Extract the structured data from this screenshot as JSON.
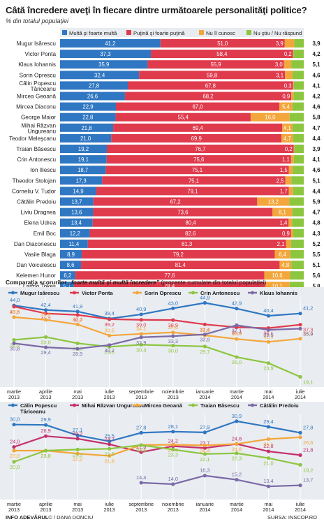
{
  "header": {
    "title": "Câtă încredere aveţi în fiecare dintre următoarele personalităţi politice?",
    "subtitle": "% din totalul populaţiei"
  },
  "colors": {
    "blue": "#2f77c2",
    "red": "#e03a4d",
    "orange": "#f3a63b",
    "green": "#8cc63f",
    "purple": "#7b6aa6",
    "magenta": "#c4306b",
    "trend_blue": "#2f77c2",
    "trend_red": "#d8304b"
  },
  "footer": {
    "left": "INFO ADEVĂRUL",
    "left_rest": "© / DANA DONCIU",
    "right": "SURSA: INSCOP.RO"
  },
  "chart_data": [
    {
      "type": "bar",
      "stacked": true,
      "legend": [
        "Multă şi foarte multă",
        "Puţină şi foarte puţină",
        "Nu îl cunosc",
        "Nu ştiu / Nu răspund"
      ],
      "categories": [
        "Mugur Isărescu",
        "Victor Ponta",
        "Klaus Iohannis",
        "Sorin Oprescu",
        "Călin Popescu Tăriceanu",
        "Mircea Geoană",
        "Mircea Diaconu",
        "George Maior",
        "Mihai Răzvan Ungureanu",
        "Teodor Meleşcanu",
        "Traian Băsescu",
        "Crin Antonescu",
        "Ion Iliescu",
        "Theodor Stolojan",
        "Corneliu V. Tudor",
        "Cătălin Predoiu",
        "Liviu Dragnea",
        "Elena Udrea",
        "Emil Boc",
        "Dan Diaconescu",
        "Vasile Blaga",
        "Dan Voiculescu",
        "Kelemen Hunor",
        "Laszlo Tokes"
      ],
      "series": [
        {
          "name": "Multă şi foarte multă",
          "values": [
            41.2,
            37.3,
            35.9,
            32.4,
            27.8,
            26.6,
            22.9,
            22.8,
            21.8,
            21.0,
            19.2,
            19.1,
            18.7,
            17.3,
            14.9,
            13.7,
            13.6,
            13.4,
            12.2,
            11.4,
            8.9,
            8.6,
            6.2,
            5.7
          ]
        },
        {
          "name": "Puţină şi foarte puţină",
          "values": [
            51.0,
            58.4,
            55.9,
            59.8,
            67.8,
            68.2,
            67.0,
            55.4,
            69.4,
            69.9,
            76.7,
            75.6,
            75.1,
            75.1,
            79.1,
            67.2,
            73.6,
            80.4,
            82.6,
            81.3,
            79.2,
            81.4,
            77.6,
            78.4
          ]
        },
        {
          "name": "Nu îl cunosc",
          "values": [
            3.9,
            0.2,
            3.0,
            3.1,
            0.3,
            0.9,
            5.4,
            16.0,
            4.1,
            4.7,
            0.2,
            1.1,
            1.5,
            2.5,
            1.7,
            13.2,
            8.1,
            1.4,
            0.9,
            2.1,
            6.4,
            4.8,
            10.6,
            10.1
          ]
        },
        {
          "name": "Nu ştiu / Nu răspund",
          "values": [
            3.9,
            4.2,
            5.1,
            4.6,
            4.1,
            4.2,
            4.6,
            5.8,
            4.7,
            4.4,
            3.9,
            4.1,
            4.6,
            5.1,
            4.4,
            5.9,
            4.7,
            4.8,
            4.3,
            5.2,
            5.5,
            5.1,
            5.6,
            5.8
          ]
        }
      ],
      "xlim": [
        0,
        100
      ]
    },
    {
      "type": "line",
      "title": "Comparaţia scorurilor",
      "title_italic": "„foarte multă şi multă încredere”",
      "title_rest": "(procente cumulate din totalul populaţiei)",
      "x": [
        [
          "martie",
          "2013"
        ],
        [
          "aprilie",
          "2013"
        ],
        [
          "mai",
          "2013"
        ],
        [
          "iulie",
          "2013"
        ],
        [
          "septembrie",
          "2013"
        ],
        [
          "noiembrie",
          "2013"
        ],
        [
          "ianuarie",
          "2014"
        ],
        [
          "martie",
          "2014"
        ],
        [
          "mai",
          "2014"
        ],
        [
          "iulie",
          "2014"
        ]
      ],
      "series": [
        {
          "name": "Mugur Isărescu",
          "values": [
            44.0,
            42.4,
            41.9,
            39.4,
            40.9,
            43.0,
            44.9,
            42.9,
            40.4,
            41.2
          ]
        },
        {
          "name": "Victor Ponta",
          "values": [
            43.6,
            41.2,
            40.7,
            39.2,
            39.0,
            38.9,
            37.4,
            36.4,
            36.1,
            37.3
          ]
        },
        {
          "name": "Sorin Oprescu",
          "values": [
            39.9,
            39.0,
            37.4,
            33.5,
            34.1,
            34.6,
            33.6,
            32.3,
            31.3,
            32.4
          ]
        },
        {
          "name": "Crin Antonescu",
          "values": [
            32.0,
            33.0,
            30.8,
            29.6,
            30.3,
            30.0,
            29.7,
            26.0,
            23.9,
            19.1
          ]
        },
        {
          "name": "Klaus Iohannis",
          "values": [
            30.8,
            29.4,
            28.9,
            30.2,
            32.9,
            33.3,
            33.9,
            37.1,
            35.5,
            35.9
          ]
        }
      ],
      "ylim": [
        17,
        46
      ]
    },
    {
      "type": "line",
      "x": [
        [
          "martie",
          "2013"
        ],
        [
          "aprilie",
          "2013"
        ],
        [
          "mai",
          "2013"
        ],
        [
          "iulie",
          "2013"
        ],
        [
          "septembrie",
          "2013"
        ],
        [
          "noiembrie",
          "2013"
        ],
        [
          "ianuarie",
          "2014"
        ],
        [
          "martie",
          "2014"
        ],
        [
          "mai",
          "2014"
        ],
        [
          "iulie",
          "2014"
        ]
      ],
      "series": [
        {
          "name": "Călin Popescu Tăriceanu",
          "values": [
            30.0,
            29.9,
            27.1,
            25.5,
            27.8,
            28.1,
            27.9,
            30.9,
            29.4,
            27.8
          ]
        },
        {
          "name": "Mihai Răzvan Ungureanu",
          "values": [
            24.0,
            26.9,
            26.2,
            24.7,
            22.6,
            24.2,
            23.7,
            24.8,
            22.8,
            21.8
          ]
        },
        {
          "name": "Mircea Geoană",
          "values": [
            23.0,
            23.0,
            22.2,
            21.6,
            24.5,
            24.6,
            24.4,
            24.8,
            26.1,
            26.6
          ]
        },
        {
          "name": "Traian Băsescu",
          "values": [
            20.0,
            23.0,
            23.3,
            23.5,
            24.5,
            23.3,
            22.1,
            22.3,
            21.0,
            19.2
          ]
        },
        {
          "name": "Cătălin Predoiu",
          "values": [
            null,
            null,
            null,
            null,
            14.4,
            14.0,
            16.3,
            15.2,
            13.4,
            13.7
          ]
        }
      ],
      "ylim": [
        11,
        32
      ]
    }
  ]
}
